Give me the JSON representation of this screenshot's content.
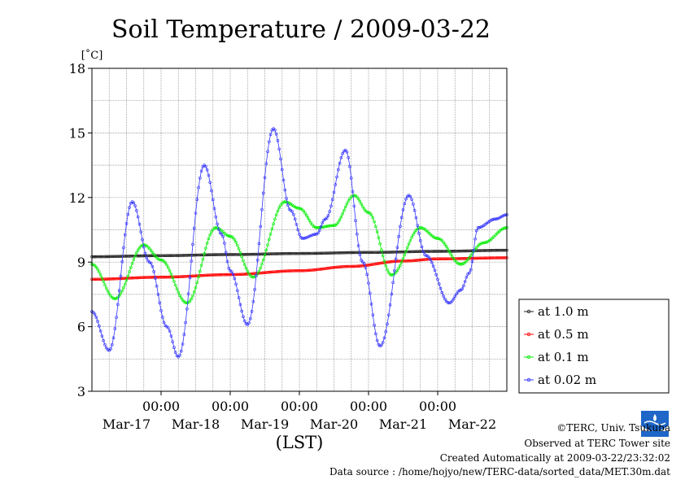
{
  "chart_data": {
    "type": "line",
    "title": "Soil Temperature / 2009-03-22",
    "ylabel": "[˚C]",
    "xlabel": "(LST)",
    "ylim": [
      3,
      18
    ],
    "yticks": [
      3,
      6,
      9,
      12,
      15,
      18
    ],
    "xlim_hours": [
      0,
      144
    ],
    "x_tick_hours": [
      24,
      48,
      72,
      96,
      120
    ],
    "x_time_labels": [
      "00:00",
      "00:00",
      "00:00",
      "00:00",
      "00:00"
    ],
    "x_date_labels": [
      "Mar-17",
      "Mar-18",
      "Mar-19",
      "Mar-20",
      "Mar-21",
      "Mar-22"
    ],
    "grid": true,
    "legend_position": "right",
    "series": [
      {
        "name": "at 1.0 m",
        "color": "#222222",
        "points": [
          [
            0,
            9.25
          ],
          [
            24,
            9.3
          ],
          [
            48,
            9.35
          ],
          [
            72,
            9.4
          ],
          [
            96,
            9.45
          ],
          [
            120,
            9.5
          ],
          [
            144,
            9.55
          ]
        ]
      },
      {
        "name": "at 0.5 m",
        "color": "#ff0000",
        "points": [
          [
            0,
            8.2
          ],
          [
            24,
            8.3
          ],
          [
            48,
            8.42
          ],
          [
            72,
            8.6
          ],
          [
            90,
            8.8
          ],
          [
            108,
            9.05
          ],
          [
            120,
            9.15
          ],
          [
            144,
            9.2
          ]
        ]
      },
      {
        "name": "at 0.1 m",
        "color": "#00ee00",
        "points": [
          [
            0,
            8.9
          ],
          [
            8,
            7.3
          ],
          [
            18,
            9.8
          ],
          [
            24,
            9.1
          ],
          [
            33,
            7.1
          ],
          [
            43,
            10.6
          ],
          [
            48,
            10.2
          ],
          [
            56,
            8.3
          ],
          [
            67,
            11.8
          ],
          [
            72,
            11.5
          ],
          [
            78,
            10.6
          ],
          [
            84,
            10.7
          ],
          [
            91,
            12.1
          ],
          [
            96,
            11.3
          ],
          [
            104,
            8.4
          ],
          [
            114,
            10.6
          ],
          [
            120,
            10.1
          ],
          [
            128,
            8.9
          ],
          [
            136,
            9.9
          ],
          [
            144,
            10.6
          ]
        ]
      },
      {
        "name": "at 0.02 m",
        "color": "#3333ff",
        "points": [
          [
            0,
            6.7
          ],
          [
            6,
            4.9
          ],
          [
            14,
            11.8
          ],
          [
            20,
            9.0
          ],
          [
            26,
            6.0
          ],
          [
            30,
            4.6
          ],
          [
            39,
            13.5
          ],
          [
            45,
            10.3
          ],
          [
            48,
            8.6
          ],
          [
            54,
            6.1
          ],
          [
            63,
            15.2
          ],
          [
            69,
            11.4
          ],
          [
            73,
            10.1
          ],
          [
            78,
            10.3
          ],
          [
            81,
            11.0
          ],
          [
            88,
            14.2
          ],
          [
            94,
            9.0
          ],
          [
            100,
            5.1
          ],
          [
            110,
            12.1
          ],
          [
            116,
            9.3
          ],
          [
            124,
            7.1
          ],
          [
            128,
            7.7
          ],
          [
            131,
            8.5
          ],
          [
            134,
            10.6
          ],
          [
            140,
            11.0
          ],
          [
            144,
            11.2
          ]
        ]
      }
    ]
  },
  "footer": {
    "credit": "©TERC, Univ. Tsukuba",
    "site": "Observed at TERC Tower site",
    "created": "Created Automatically at 2009-03-22/23:32:02",
    "source": "Data source : /home/hojyo/new/TERC-data/sorted_data/MET.30m.dat"
  }
}
